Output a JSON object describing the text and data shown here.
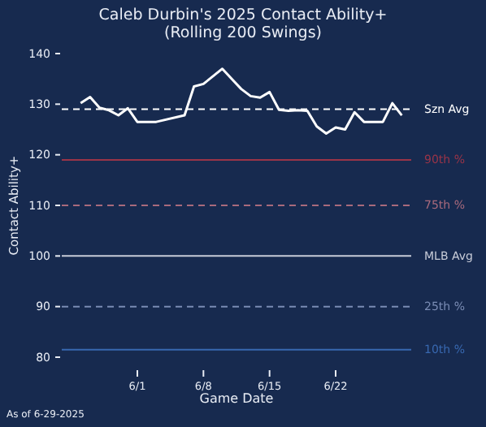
{
  "chart_data": {
    "type": "line",
    "title": "Caleb Durbin's 2025 Contact Ability+",
    "subtitle": "(Rolling 200 Swings)",
    "xlabel": "Game Date",
    "ylabel": "Contact Ability+",
    "x": [
      "2025-05-26",
      "2025-05-27",
      "2025-05-28",
      "2025-05-29",
      "2025-05-30",
      "2025-05-31",
      "2025-06-01",
      "2025-06-03",
      "2025-06-06",
      "2025-06-07",
      "2025-06-08",
      "2025-06-10",
      "2025-06-11",
      "2025-06-12",
      "2025-06-13",
      "2025-06-14",
      "2025-06-15",
      "2025-06-16",
      "2025-06-17",
      "2025-06-18",
      "2025-06-19",
      "2025-06-20",
      "2025-06-21",
      "2025-06-22",
      "2025-06-23",
      "2025-06-24",
      "2025-06-25",
      "2025-06-27",
      "2025-06-28",
      "2025-06-29"
    ],
    "series": [
      {
        "color": "#ffffff",
        "values": [
          130.2,
          131.4,
          129.3,
          128.8,
          127.8,
          129.2,
          126.5,
          126.5,
          127.8,
          133.5,
          134,
          137,
          135,
          133,
          131.6,
          131.3,
          132.4,
          128.9,
          128.7,
          128.8,
          128.7,
          125.6,
          124.2,
          125.4,
          125,
          128.4,
          126.5,
          126.5,
          130.2,
          127.8
        ]
      }
    ],
    "xlim": [
      "2025-05-24",
      "2025-06-30"
    ],
    "ylim": [
      80,
      140
    ],
    "xticks": [
      {
        "value": "2025-06-01",
        "label": "6/1"
      },
      {
        "value": "2025-06-08",
        "label": "6/8"
      },
      {
        "value": "2025-06-15",
        "label": "6/15"
      },
      {
        "value": "2025-06-22",
        "label": "6/22"
      }
    ],
    "yticks": [
      80,
      90,
      100,
      110,
      120,
      130,
      140
    ],
    "grid": false,
    "marker": "none",
    "line_style": "solid",
    "ref_lines": [
      {
        "axis": "y",
        "value": 129,
        "label": "Szn Avg",
        "color": "#ffffff",
        "line_style": "dashed"
      },
      {
        "axis": "y",
        "value": 119,
        "label": "90th %",
        "color": "#9a3448",
        "line_style": "solid"
      },
      {
        "axis": "y",
        "value": 110,
        "label": "75th %",
        "color": "#a86a7c",
        "line_style": "dashed"
      },
      {
        "axis": "y",
        "value": 100,
        "label": "MLB Avg",
        "color": "#c8ccd8",
        "line_style": "solid"
      },
      {
        "axis": "y",
        "value": 90,
        "label": "25th %",
        "color": "#7a8cb4",
        "line_style": "dashed"
      },
      {
        "axis": "y",
        "value": 81.5,
        "label": "10th %",
        "color": "#3868b0",
        "line_style": "solid"
      }
    ],
    "annotations": [
      "As of 6-29-2025"
    ]
  }
}
